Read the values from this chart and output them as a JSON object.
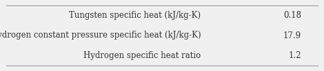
{
  "rows": [
    {
      "label": "Tungsten specific heat (kJ/kg-K)",
      "value": "0.18"
    },
    {
      "label": "Hydrogen constant pressure specific heat (kJ/kg-K)",
      "value": "17.9"
    },
    {
      "label": "Hydrogen specific heat ratio",
      "value": "1.2"
    }
  ],
  "background_color": "#f0f0f0",
  "border_color": "#999999",
  "text_color": "#333333",
  "font_size": 8.5,
  "fig_width": 4.7,
  "fig_height": 1.04,
  "dpi": 100
}
